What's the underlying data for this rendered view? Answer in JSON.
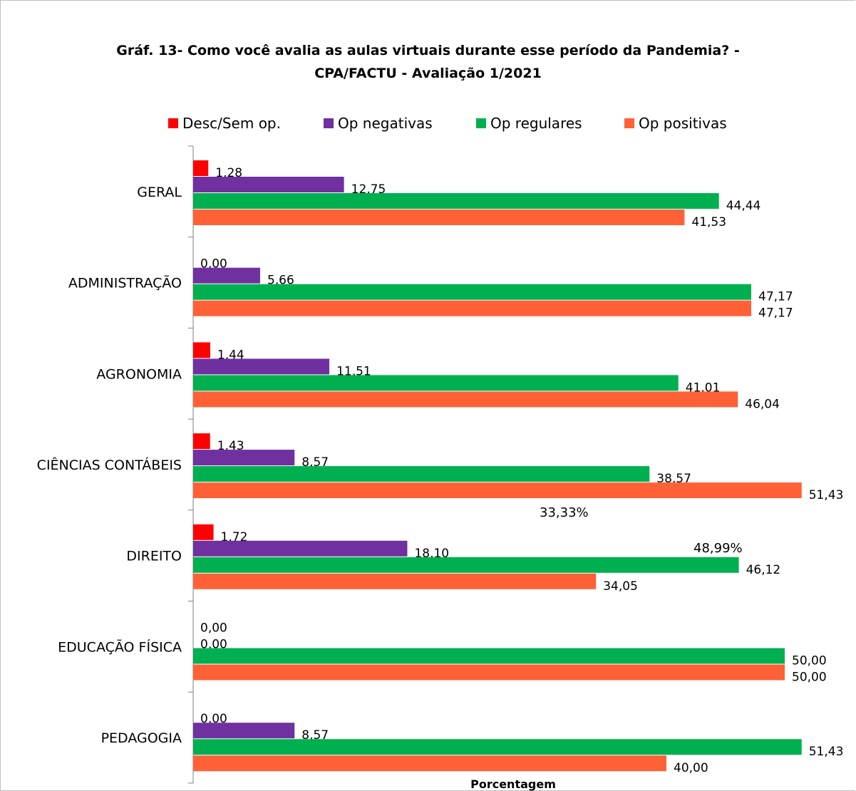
{
  "chart_data": {
    "type": "bar",
    "orientation": "horizontal",
    "title": "Gráf. 13- Como você avalia as aulas virtuais durante esse período da Pandemia? -",
    "subtitle": "CPA/FACTU - Avaliação 1/2021",
    "xlabel": "Porcentagem",
    "ylabel": "",
    "xlim": [
      0,
      52
    ],
    "grid": false,
    "legend_position": "top",
    "categories": [
      "GERAL",
      "ADMINISTRAÇÃO",
      "AGRONOMIA",
      "CIÊNCIAS CONTÁBEIS",
      "DIREITO",
      "EDUCAÇÃO FÍSICA",
      "PEDAGOGIA"
    ],
    "series": [
      {
        "name": "Desc/Sem op.",
        "color": "#ff0000",
        "values": [
          1.28,
          0.0,
          1.44,
          1.43,
          1.72,
          0.0,
          0.0
        ],
        "labels": [
          "1,28",
          "0,00",
          "1,44",
          "1,43",
          "1,72",
          "0,00",
          "0,00"
        ]
      },
      {
        "name": "Op negativas",
        "color": "#7030a0",
        "values": [
          12.75,
          5.66,
          11.51,
          8.57,
          18.1,
          0.0,
          8.57
        ],
        "labels": [
          "12,75",
          "5,66",
          "11,51",
          "8,57",
          "18,10",
          "0,00",
          "8,57"
        ]
      },
      {
        "name": "Op regulares",
        "color": "#00b050",
        "values": [
          44.44,
          47.17,
          41.01,
          38.57,
          46.12,
          50.0,
          51.43
        ],
        "labels": [
          "44,44",
          "47,17",
          "41,01",
          "38,57",
          "46,12",
          "50,00",
          "51,43"
        ]
      },
      {
        "name": "Op positivas",
        "color": "#ff6137",
        "values": [
          41.53,
          47.17,
          46.04,
          51.43,
          34.05,
          50.0,
          40.0
        ],
        "labels": [
          "41,53",
          "47,17",
          "46,04",
          "51,43",
          "34,05",
          "50,00",
          "40,00"
        ]
      }
    ],
    "annotations": [
      "33,33%",
      "48,99%"
    ]
  }
}
